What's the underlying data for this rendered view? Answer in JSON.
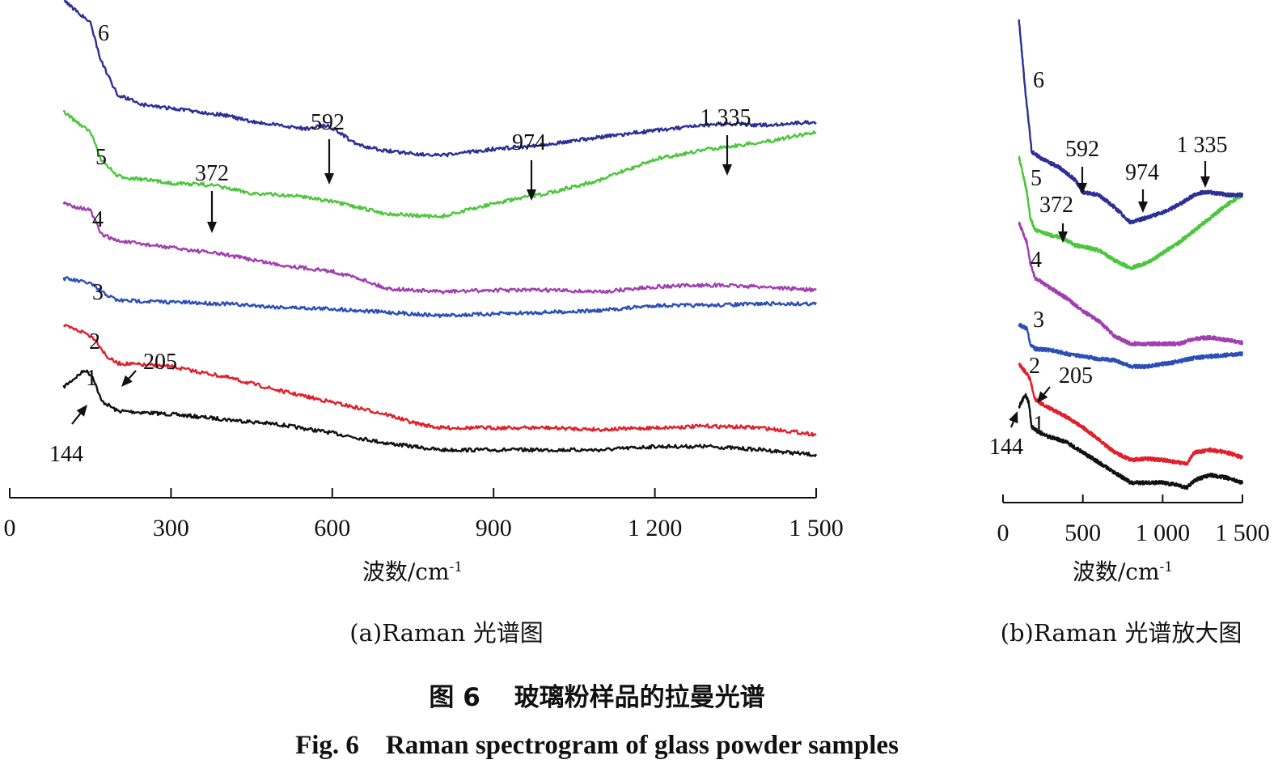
{
  "chart_data": [
    {
      "type": "line",
      "panel": "a",
      "subcaption": "(a)Raman 光谱图",
      "xlabel": "波数/cm-1",
      "xlim": [
        0,
        1500
      ],
      "xticks": [
        0,
        300,
        600,
        900,
        1200,
        1500
      ],
      "xtick_labels": [
        "0",
        "300",
        "600",
        "900",
        "1 200",
        "1 500"
      ],
      "yaxis": "none",
      "series": [
        {
          "name": "1",
          "color": "#111111",
          "x": [
            100,
            140,
            155,
            170,
            200,
            300,
            400,
            500,
            600,
            700,
            800,
            900,
            1000,
            1100,
            1200,
            1300,
            1400,
            1500
          ],
          "y": [
            0.29,
            0.34,
            0.32,
            0.25,
            0.22,
            0.21,
            0.195,
            0.18,
            0.155,
            0.125,
            0.105,
            0.105,
            0.105,
            0.105,
            0.115,
            0.115,
            0.105,
            0.09
          ]
        },
        {
          "name": "2",
          "color": "#e0202a",
          "x": [
            100,
            140,
            160,
            180,
            200,
            300,
            400,
            500,
            600,
            700,
            750,
            800,
            900,
            1000,
            1100,
            1200,
            1300,
            1400,
            1500
          ],
          "y": [
            0.47,
            0.45,
            0.43,
            0.38,
            0.36,
            0.35,
            0.32,
            0.28,
            0.245,
            0.21,
            0.185,
            0.17,
            0.17,
            0.17,
            0.165,
            0.17,
            0.175,
            0.17,
            0.15
          ]
        },
        {
          "name": "3",
          "color": "#2b4fb8",
          "x": [
            100,
            150,
            170,
            200,
            300,
            400,
            500,
            600,
            700,
            800,
            900,
            1000,
            1100,
            1200,
            1300,
            1400,
            1500
          ],
          "y": [
            0.61,
            0.595,
            0.57,
            0.545,
            0.54,
            0.535,
            0.525,
            0.52,
            0.51,
            0.5,
            0.505,
            0.51,
            0.515,
            0.53,
            0.53,
            0.535,
            0.535
          ]
        },
        {
          "name": "4",
          "color": "#a040b0",
          "x": [
            100,
            150,
            170,
            200,
            250,
            300,
            400,
            500,
            600,
            650,
            700,
            800,
            900,
            1000,
            1100,
            1200,
            1300,
            1400,
            1500
          ],
          "y": [
            0.83,
            0.81,
            0.74,
            0.72,
            0.71,
            0.7,
            0.68,
            0.65,
            0.63,
            0.61,
            0.58,
            0.57,
            0.575,
            0.575,
            0.57,
            0.585,
            0.59,
            0.585,
            0.575
          ]
        },
        {
          "name": "5",
          "color": "#4cc63c",
          "x": [
            100,
            150,
            170,
            200,
            300,
            372,
            450,
            500,
            550,
            600,
            700,
            800,
            900,
            1000,
            1100,
            1200,
            1300,
            1400,
            1500
          ],
          "y": [
            1.1,
            1.04,
            0.96,
            0.91,
            0.89,
            0.885,
            0.86,
            0.855,
            0.85,
            0.835,
            0.8,
            0.79,
            0.83,
            0.86,
            0.9,
            0.96,
            0.99,
            1.01,
            1.04
          ]
        },
        {
          "name": "6",
          "color": "#2c2f95",
          "x": [
            100,
            150,
            170,
            200,
            250,
            300,
            400,
            450,
            500,
            550,
            592,
            650,
            700,
            800,
            900,
            974,
            1000,
            1100,
            1200,
            1300,
            1335,
            1400,
            1500
          ],
          "y": [
            1.43,
            1.36,
            1.25,
            1.15,
            1.12,
            1.11,
            1.09,
            1.07,
            1.06,
            1.05,
            1.06,
            1.0,
            0.985,
            0.97,
            0.99,
            1.0,
            1.005,
            1.025,
            1.045,
            1.06,
            1.065,
            1.06,
            1.07
          ]
        }
      ],
      "annotations": [
        {
          "text": "144",
          "x": 144,
          "series": "1"
        },
        {
          "text": "205",
          "x": 205,
          "series": "2"
        },
        {
          "text": "372",
          "x": 372,
          "series": "5"
        },
        {
          "text": "592",
          "x": 592,
          "series": "6"
        },
        {
          "text": "974",
          "x": 974,
          "series": "6"
        },
        {
          "text": "1 335",
          "x": 1335,
          "series": "6"
        }
      ]
    },
    {
      "type": "line",
      "panel": "b",
      "subcaption": "(b)Raman 光谱放大图",
      "xlabel": "波数/cm-1",
      "xlim": [
        0,
        1500
      ],
      "xticks": [
        0,
        500,
        1000,
        1500
      ],
      "xtick_labels": [
        "0",
        "500",
        "1 000",
        "1 500"
      ],
      "yaxis": "none",
      "series": [
        {
          "name": "1",
          "color": "#111111",
          "x": [
            100,
            140,
            160,
            180,
            250,
            400,
            500,
            600,
            700,
            800,
            900,
            1000,
            1100,
            1150,
            1200,
            1300,
            1400,
            1500
          ],
          "y": [
            0.35,
            0.4,
            0.37,
            0.27,
            0.24,
            0.21,
            0.17,
            0.13,
            0.09,
            0.05,
            0.05,
            0.05,
            0.04,
            0.03,
            0.06,
            0.08,
            0.07,
            0.05
          ]
        },
        {
          "name": "2",
          "color": "#e0202a",
          "x": [
            100,
            150,
            170,
            200,
            250,
            400,
            500,
            600,
            700,
            800,
            900,
            1000,
            1100,
            1150,
            1200,
            1300,
            1400,
            1500
          ],
          "y": [
            0.52,
            0.48,
            0.46,
            0.38,
            0.36,
            0.31,
            0.27,
            0.22,
            0.17,
            0.14,
            0.145,
            0.14,
            0.13,
            0.125,
            0.17,
            0.18,
            0.17,
            0.15
          ]
        },
        {
          "name": "3",
          "color": "#2b4fb8",
          "x": [
            100,
            150,
            170,
            200,
            300,
            400,
            500,
            600,
            700,
            800,
            900,
            1000,
            1100,
            1200,
            1300,
            1400,
            1500
          ],
          "y": [
            0.675,
            0.66,
            0.6,
            0.58,
            0.575,
            0.56,
            0.55,
            0.54,
            0.535,
            0.51,
            0.51,
            0.52,
            0.53,
            0.545,
            0.55,
            0.555,
            0.56
          ]
        },
        {
          "name": "4",
          "color": "#a040b0",
          "x": [
            100,
            150,
            170,
            200,
            300,
            400,
            500,
            600,
            700,
            800,
            900,
            1000,
            1100,
            1200,
            1300,
            1400,
            1500
          ],
          "y": [
            1.08,
            1.0,
            0.92,
            0.86,
            0.82,
            0.78,
            0.73,
            0.69,
            0.63,
            0.6,
            0.6,
            0.6,
            0.6,
            0.62,
            0.625,
            0.615,
            0.605
          ]
        },
        {
          "name": "5",
          "color": "#4cc63c",
          "x": [
            100,
            150,
            170,
            200,
            300,
            372,
            450,
            500,
            600,
            700,
            800,
            900,
            1000,
            1100,
            1200,
            1300,
            1400,
            1500
          ],
          "y": [
            1.34,
            1.2,
            1.1,
            1.05,
            1.03,
            1.02,
            0.99,
            0.985,
            0.97,
            0.93,
            0.9,
            0.92,
            0.96,
            1.0,
            1.05,
            1.1,
            1.15,
            1.19
          ]
        },
        {
          "name": "6",
          "color": "#2c2f95",
          "x": [
            100,
            140,
            160,
            180,
            250,
            350,
            450,
            500,
            600,
            700,
            800,
            900,
            1000,
            1100,
            1200,
            1250,
            1300,
            1400,
            1500
          ],
          "y": [
            1.88,
            1.6,
            1.48,
            1.36,
            1.33,
            1.3,
            1.25,
            1.2,
            1.19,
            1.14,
            1.08,
            1.1,
            1.12,
            1.15,
            1.19,
            1.2,
            1.2,
            1.19,
            1.19
          ]
        }
      ],
      "annotations": [
        {
          "text": "144",
          "x": 144,
          "series": "1"
        },
        {
          "text": "205",
          "x": 205,
          "series": "2"
        },
        {
          "text": "372",
          "x": 372,
          "series": "5"
        },
        {
          "text": "592",
          "x": 592,
          "series": "6"
        },
        {
          "text": "974",
          "x": 974,
          "series": "6"
        },
        {
          "text": "1 335",
          "x": 1335,
          "series": "6"
        }
      ]
    }
  ],
  "caption": {
    "cn": "图 6　 玻璃粉样品的拉曼光谱",
    "en": "Fig. 6　Raman spectrogram of glass powder samples"
  }
}
